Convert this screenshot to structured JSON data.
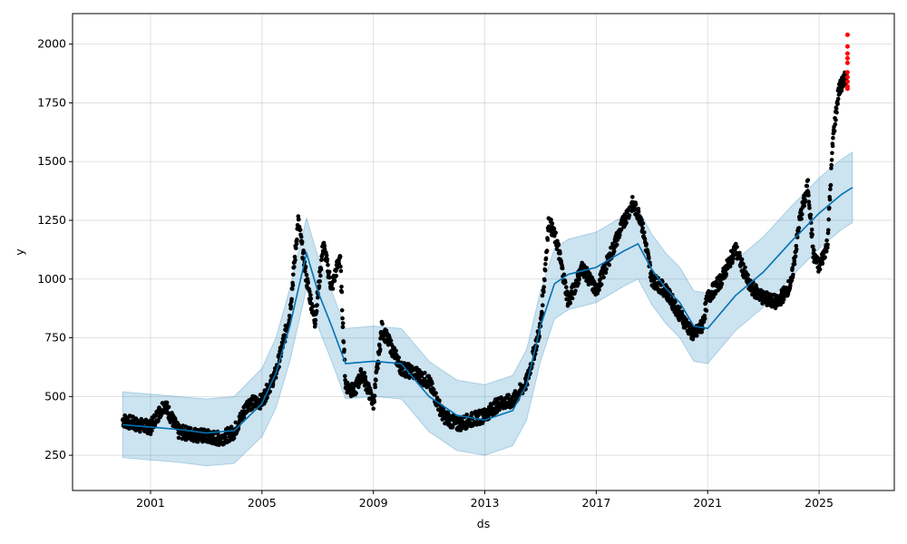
{
  "chart_data": {
    "type": "scatter",
    "title": "",
    "xlabel": "ds",
    "ylabel": "y",
    "xlim": [
      1998.2,
      2027.7
    ],
    "ylim": [
      100,
      2130
    ],
    "xticks": [
      2001,
      2005,
      2009,
      2013,
      2017,
      2021,
      2025
    ],
    "xtick_labels": [
      "2001",
      "2005",
      "2009",
      "2013",
      "2017",
      "2021",
      "2025"
    ],
    "yticks": [
      250,
      500,
      750,
      1000,
      1250,
      1500,
      1750,
      2000
    ],
    "ytick_labels": [
      "250",
      "500",
      "750",
      "1000",
      "1250",
      "1500",
      "1750",
      "2000"
    ],
    "grid": true,
    "colors": {
      "observed": "#000000",
      "forecast_line": "#0072B2",
      "uncertainty_band": "#0072B2",
      "highlight": "#ff0000"
    },
    "forecast": {
      "x": [
        2000.0,
        2001.0,
        2002.0,
        2003.0,
        2004.0,
        2005.0,
        2005.5,
        2006.0,
        2006.6,
        2007.0,
        2007.5,
        2008.0,
        2009.0,
        2010.0,
        2011.0,
        2012.0,
        2013.0,
        2014.0,
        2014.5,
        2015.0,
        2015.5,
        2016.0,
        2017.0,
        2018.0,
        2018.5,
        2019.0,
        2019.5,
        2020.0,
        2020.5,
        2021.0,
        2022.0,
        2023.0,
        2024.0,
        2025.0,
        2025.8,
        2026.2
      ],
      "yhat": [
        380,
        370,
        360,
        345,
        355,
        470,
        600,
        800,
        1110,
        950,
        800,
        640,
        650,
        640,
        500,
        420,
        400,
        440,
        550,
        800,
        980,
        1020,
        1050,
        1120,
        1150,
        1040,
        960,
        900,
        800,
        790,
        930,
        1030,
        1160,
        1280,
        1360,
        1390
      ],
      "upper": [
        520,
        510,
        500,
        490,
        500,
        620,
        750,
        960,
        1260,
        1100,
        950,
        790,
        800,
        790,
        650,
        570,
        550,
        590,
        700,
        950,
        1130,
        1170,
        1200,
        1270,
        1300,
        1190,
        1110,
        1050,
        950,
        940,
        1080,
        1180,
        1310,
        1430,
        1510,
        1540
      ],
      "lower": [
        240,
        230,
        220,
        205,
        215,
        330,
        450,
        650,
        960,
        800,
        650,
        490,
        500,
        490,
        350,
        270,
        250,
        290,
        400,
        650,
        830,
        870,
        900,
        970,
        1000,
        890,
        810,
        750,
        650,
        640,
        780,
        880,
        1010,
        1130,
        1210,
        1240
      ]
    },
    "observed": {
      "x": [
        2000.0,
        2000.5,
        2001.0,
        2001.5,
        2002.0,
        2002.5,
        2003.0,
        2003.5,
        2004.0,
        2004.5,
        2005.0,
        2005.5,
        2006.0,
        2006.3,
        2006.6,
        2006.9,
        2007.2,
        2007.5,
        2007.8,
        2008.0,
        2008.3,
        2008.6,
        2009.0,
        2009.3,
        2009.6,
        2010.0,
        2010.5,
        2011.0,
        2011.5,
        2012.0,
        2012.5,
        2013.0,
        2013.5,
        2014.0,
        2014.5,
        2015.0,
        2015.3,
        2015.6,
        2016.0,
        2016.5,
        2017.0,
        2017.5,
        2018.0,
        2018.3,
        2018.6,
        2019.0,
        2019.5,
        2020.0,
        2020.5,
        2020.8,
        2021.0,
        2021.5,
        2022.0,
        2022.5,
        2023.0,
        2023.5,
        2024.0,
        2024.3,
        2024.6,
        2024.8,
        2025.0,
        2025.3,
        2025.5,
        2025.7,
        2025.9,
        2026.0
      ],
      "y": [
        400,
        380,
        370,
        470,
        350,
        340,
        330,
        320,
        350,
        470,
        480,
        600,
        850,
        1250,
        1000,
        820,
        1150,
        960,
        1100,
        550,
        520,
        600,
        470,
        790,
        720,
        620,
        600,
        560,
        420,
        380,
        400,
        420,
        470,
        480,
        560,
        800,
        1250,
        1150,
        900,
        1050,
        950,
        1100,
        1250,
        1320,
        1260,
        1000,
        950,
        850,
        760,
        800,
        920,
        1000,
        1130,
        970,
        920,
        900,
        980,
        1250,
        1400,
        1100,
        1050,
        1150,
        1600,
        1800,
        1850,
        1850
      ]
    },
    "highlighted": {
      "x": [
        2026.02,
        2026.02,
        2026.02,
        2026.02,
        2026.02,
        2026.02,
        2026.02,
        2026.02,
        2026.02,
        2026.02
      ],
      "y": [
        2040,
        1990,
        1960,
        1940,
        1920,
        1880,
        1860,
        1840,
        1820,
        1810
      ]
    }
  }
}
